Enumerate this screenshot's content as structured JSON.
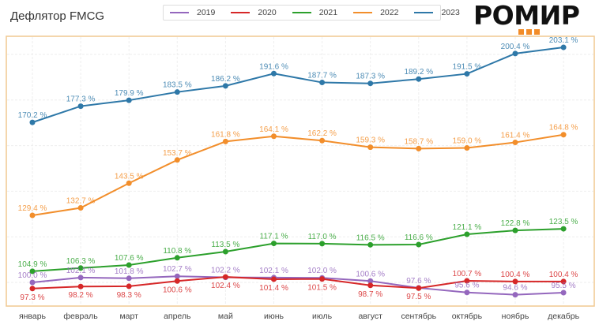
{
  "title": "Дефлятор FMCG",
  "logo": {
    "text": "РОМИР",
    "accent_color": "#f28c28"
  },
  "colors": {
    "frame": "#f0c890",
    "grid": "#eeeeee"
  },
  "chart_data": {
    "type": "line",
    "title": "Дефлятор FMCG",
    "xlabel": "",
    "ylabel": "",
    "ylim": [
      90,
      210
    ],
    "grid": true,
    "legend_position": "top-center",
    "categories": [
      "январь",
      "февраль",
      "март",
      "апрель",
      "май",
      "июнь",
      "июль",
      "август",
      "сентябрь",
      "октябрь",
      "ноябрь",
      "декабрь"
    ],
    "value_suffix": " %",
    "series": [
      {
        "name": "2019",
        "color": "#9467bd",
        "values": [
          100.0,
          102.1,
          101.8,
          102.7,
          102.2,
          102.1,
          102.0,
          100.6,
          97.6,
          95.6,
          94.6,
          95.5
        ],
        "label_side": [
          "above",
          "above",
          "above",
          "above",
          "above",
          "above",
          "above",
          "above",
          "above",
          "above",
          "above",
          "above"
        ]
      },
      {
        "name": "2020",
        "color": "#d62728",
        "values": [
          97.3,
          98.2,
          98.3,
          100.6,
          102.4,
          101.4,
          101.5,
          98.7,
          97.5,
          100.7,
          100.4,
          100.4
        ],
        "label_side": [
          "below",
          "below",
          "below",
          "below",
          "below",
          "below",
          "below",
          "below",
          "below",
          "above",
          "above",
          "above"
        ]
      },
      {
        "name": "2021",
        "color": "#2ca02c",
        "values": [
          104.9,
          106.3,
          107.6,
          110.8,
          113.5,
          117.1,
          117.0,
          116.5,
          116.6,
          121.1,
          122.8,
          123.5
        ],
        "label_side": [
          "above",
          "above",
          "above",
          "above",
          "above",
          "above",
          "above",
          "above",
          "above",
          "above",
          "above",
          "above"
        ]
      },
      {
        "name": "2022",
        "color": "#f28e2b",
        "values": [
          129.4,
          132.7,
          143.5,
          153.7,
          161.8,
          164.1,
          162.2,
          159.3,
          158.7,
          159.0,
          161.4,
          164.8
        ],
        "label_side": [
          "above",
          "above",
          "above",
          "above",
          "above",
          "above",
          "above",
          "above",
          "above",
          "above",
          "above",
          "above"
        ]
      },
      {
        "name": "2023",
        "color": "#2e78a8",
        "values": [
          170.2,
          177.3,
          179.9,
          183.5,
          186.2,
          191.6,
          187.7,
          187.3,
          189.2,
          191.5,
          200.4,
          203.1
        ],
        "label_side": [
          "above",
          "above",
          "above",
          "above",
          "above",
          "above",
          "above",
          "above",
          "above",
          "above",
          "above",
          "above"
        ]
      }
    ]
  }
}
